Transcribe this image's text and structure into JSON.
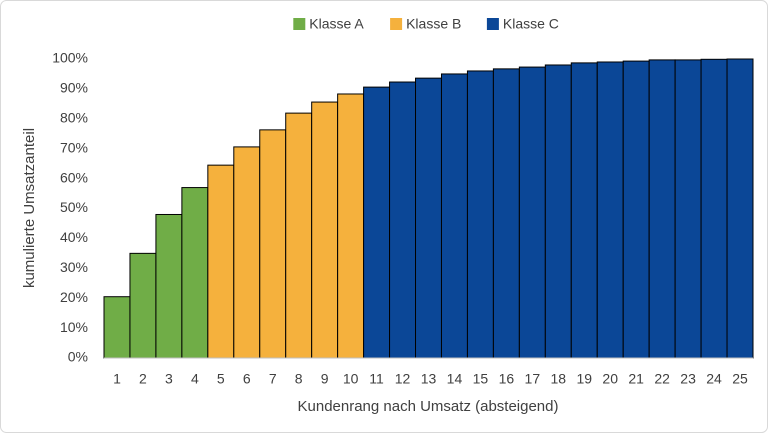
{
  "chart_data": {
    "type": "bar",
    "x_label": "Kundenrang nach Umsatz (absteigend)",
    "y_label": "kumulierte Umsatzanteil",
    "categories": [
      "1",
      "2",
      "3",
      "4",
      "5",
      "6",
      "7",
      "8",
      "9",
      "10",
      "11",
      "12",
      "13",
      "14",
      "15",
      "16",
      "17",
      "18",
      "19",
      "20",
      "21",
      "22",
      "23",
      "24",
      "25"
    ],
    "series": [
      {
        "name": "Klasse A",
        "color": "#70ad47",
        "values": [
          20.5,
          35,
          48,
          57,
          null,
          null,
          null,
          null,
          null,
          null,
          null,
          null,
          null,
          null,
          null,
          null,
          null,
          null,
          null,
          null,
          null,
          null,
          null,
          null,
          null
        ]
      },
      {
        "name": "Klasse B",
        "color": "#f5b13d",
        "values": [
          null,
          null,
          null,
          null,
          64.5,
          70.6,
          76.3,
          81.9,
          85.6,
          88.3,
          null,
          null,
          null,
          null,
          null,
          null,
          null,
          null,
          null,
          null,
          null,
          null,
          null,
          null,
          null
        ]
      },
      {
        "name": "Klasse C",
        "color": "#0b4797",
        "values": [
          null,
          null,
          null,
          null,
          null,
          null,
          null,
          null,
          null,
          null,
          90.6,
          92.3,
          93.6,
          95,
          96,
          96.7,
          97.3,
          98,
          98.7,
          99,
          99.3,
          99.7,
          99.7,
          99.9,
          100
        ]
      }
    ],
    "ylim": [
      0,
      100
    ],
    "yticks": [
      {
        "value": 0,
        "label": "0%"
      },
      {
        "value": 10,
        "label": "10%"
      },
      {
        "value": 20,
        "label": "20%"
      },
      {
        "value": 30,
        "label": "30%"
      },
      {
        "value": 40,
        "label": "40%"
      },
      {
        "value": 50,
        "label": "50%"
      },
      {
        "value": 60,
        "label": "60%"
      },
      {
        "value": 70,
        "label": "70%"
      },
      {
        "value": 80,
        "label": "80%"
      },
      {
        "value": 90,
        "label": "90%"
      },
      {
        "value": 100,
        "label": "100%"
      }
    ],
    "grid": false,
    "legend": "top"
  }
}
